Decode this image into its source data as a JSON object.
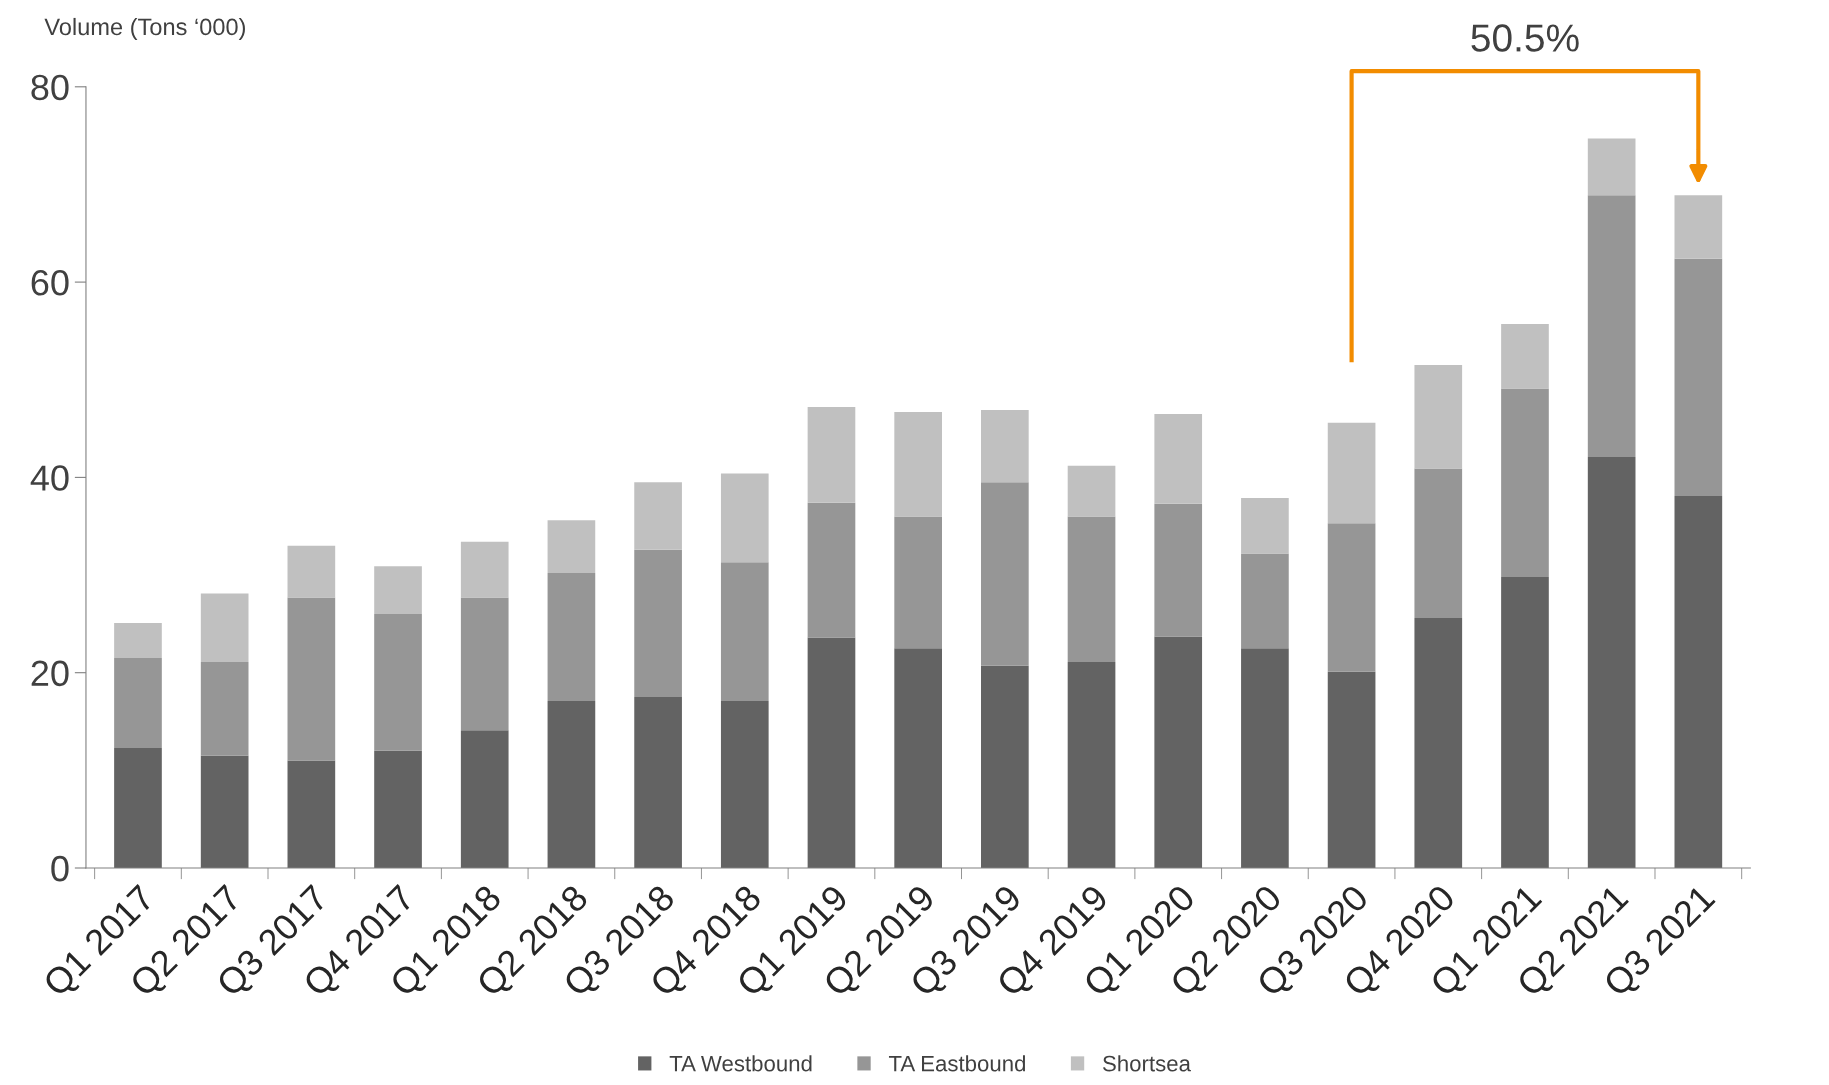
{
  "chart_data": {
    "type": "bar",
    "stacked": true,
    "ylabel": "Volume (Tons ‘000)",
    "categories": [
      "Q1 2017",
      "Q2 2017",
      "Q3 2017",
      "Q4 2017",
      "Q1 2018",
      "Q2 2018",
      "Q3 2018",
      "Q4 2018",
      "Q1 2019",
      "Q2 2019",
      "Q3 2019",
      "Q4 2019",
      "Q1 2020",
      "Q2 2020",
      "Q3 2020",
      "Q4 2020",
      "Q1 2021",
      "Q2 2021",
      "Q3 2021"
    ],
    "series": [
      {
        "name": "TA Westbound",
        "color": "#636363",
        "values": [
          12.3,
          11.5,
          11.0,
          12.0,
          14.1,
          17.1,
          17.5,
          17.1,
          23.6,
          22.5,
          20.7,
          21.1,
          23.7,
          22.5,
          20.1,
          25.6,
          29.8,
          42.1,
          38.1
        ]
      },
      {
        "name": "TA Eastbound",
        "color": "#969696",
        "values": [
          9.2,
          9.6,
          16.7,
          14.0,
          13.6,
          13.1,
          15.1,
          14.2,
          13.8,
          13.5,
          18.8,
          14.9,
          13.6,
          9.7,
          15.2,
          15.3,
          19.3,
          26.8,
          24.3
        ]
      },
      {
        "name": "Shortsea",
        "color": "#c0c0c0",
        "values": [
          3.6,
          7.0,
          5.3,
          4.9,
          5.7,
          5.4,
          6.9,
          9.1,
          9.8,
          10.7,
          7.4,
          5.2,
          9.2,
          5.7,
          10.3,
          10.6,
          6.6,
          5.8,
          6.5
        ]
      }
    ],
    "ylim": [
      0,
      80
    ],
    "yticks": [
      0,
      20,
      40,
      60,
      80
    ],
    "grid": false,
    "legend": "bottom",
    "annotations": [
      "50.5%"
    ]
  }
}
